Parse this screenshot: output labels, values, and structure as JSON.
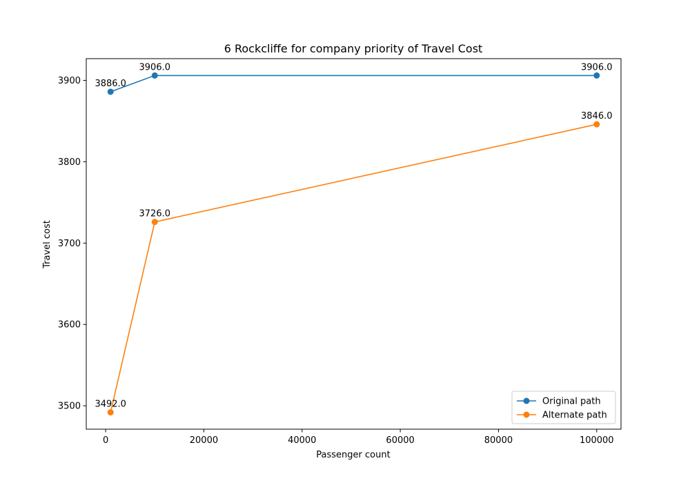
{
  "chart_data": {
    "type": "line",
    "title": "6 Rockcliffe for company priority of Travel Cost",
    "xlabel": "Passenger count",
    "ylabel": "Travel cost",
    "x": [
      1000,
      10000,
      100000
    ],
    "xlim": [
      -3950,
      104950
    ],
    "ylim": [
      3471.3,
      3926.7
    ],
    "xticks": [
      0,
      20000,
      40000,
      60000,
      80000,
      100000
    ],
    "xtick_labels": [
      "0",
      "20000",
      "40000",
      "60000",
      "80000",
      "100000"
    ],
    "yticks": [
      3500,
      3600,
      3700,
      3800,
      3900
    ],
    "ytick_labels": [
      "3500",
      "3600",
      "3700",
      "3800",
      "3900"
    ],
    "grid": false,
    "legend_position": "lower-right",
    "series": [
      {
        "name": "Original path",
        "color": "#1f77b4",
        "marker": "circle",
        "values": [
          3886.0,
          3906.0,
          3906.0
        ],
        "labels": [
          "3886.0",
          "3906.0",
          "3906.0"
        ]
      },
      {
        "name": "Alternate path",
        "color": "#ff7f0e",
        "marker": "circle",
        "values": [
          3492.0,
          3726.0,
          3846.0
        ],
        "labels": [
          "3492.0",
          "3726.0",
          "3846.0"
        ]
      }
    ]
  }
}
